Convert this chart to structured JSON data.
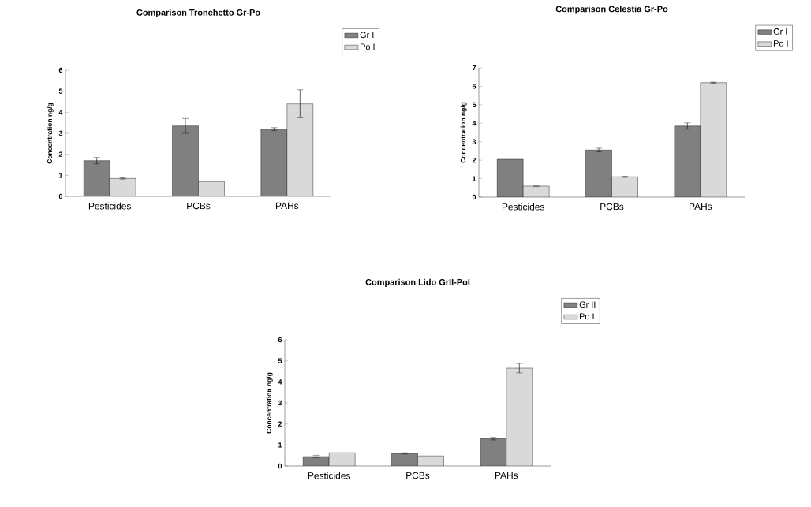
{
  "chart_data": [
    {
      "type": "bar",
      "title": "Comparison Tronchetto Gr-Po",
      "ylabel": "Concentration ng/g",
      "categories": [
        "Pesticides",
        "PCBs",
        "PAHs"
      ],
      "series": [
        {
          "name": "Gr I",
          "color": "#808080",
          "values": [
            1.7,
            3.35,
            3.2
          ],
          "errors": [
            0.15,
            0.35,
            0.07
          ]
        },
        {
          "name": "Po I",
          "color": "#d9d9d9",
          "values": [
            0.85,
            0.7,
            4.4
          ],
          "errors": [
            0.03,
            null,
            0.67
          ]
        }
      ],
      "ylim": [
        0,
        6
      ],
      "yticks": [
        0,
        1,
        2,
        3,
        4,
        5,
        6
      ],
      "legend": "top right"
    },
    {
      "type": "bar",
      "title": "Comparison Celestia Gr-Po",
      "ylabel": "Concentration ng/g",
      "categories": [
        "Pesticides",
        "PCBs",
        "PAHs"
      ],
      "series": [
        {
          "name": "Gr I",
          "color": "#808080",
          "values": [
            2.05,
            2.55,
            3.85
          ],
          "errors": [
            null,
            0.1,
            0.17
          ]
        },
        {
          "name": "Po I",
          "color": "#d9d9d9",
          "values": [
            0.6,
            1.1,
            6.2
          ],
          "errors": [
            0.03,
            0.03,
            0.03
          ]
        }
      ],
      "ylim": [
        0,
        7
      ],
      "yticks": [
        0,
        1,
        2,
        3,
        4,
        5,
        6,
        7
      ],
      "legend": "top right"
    },
    {
      "type": "bar",
      "title": "Comparison Lido GrII-PoI",
      "ylabel": "Concentration ng/g",
      "categories": [
        "Pesticides",
        "PCBs",
        "PAHs"
      ],
      "series": [
        {
          "name": "Gr II",
          "color": "#808080",
          "values": [
            0.45,
            0.6,
            1.3
          ],
          "errors": [
            0.06,
            0.03,
            0.06
          ]
        },
        {
          "name": "Po I",
          "color": "#d9d9d9",
          "values": [
            0.63,
            0.48,
            4.65
          ],
          "errors": [
            null,
            null,
            0.22
          ]
        }
      ],
      "ylim": [
        0,
        6
      ],
      "yticks": [
        0,
        1,
        2,
        3,
        4,
        5,
        6
      ],
      "legend": "top right"
    }
  ]
}
